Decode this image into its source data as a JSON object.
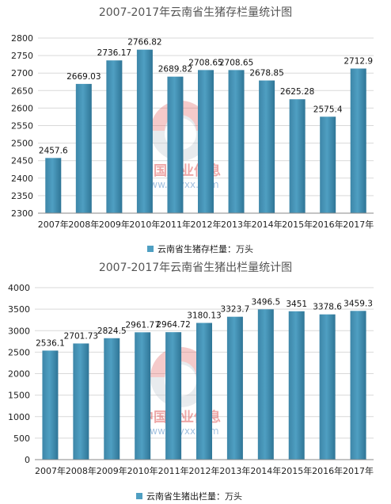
{
  "watermark": {
    "brand": "中国产业信息",
    "url": "www.chyxx.com"
  },
  "chart_data": [
    {
      "type": "bar",
      "title": "2007-2017年云南省生猪存栏量统计图",
      "categories": [
        "2007年",
        "2008年",
        "2009年",
        "2010年",
        "2011年",
        "2012年",
        "2013年",
        "2014年",
        "2015年",
        "2016年",
        "2017年"
      ],
      "series": [
        {
          "name": "云南省生猪存栏量：万头",
          "values": [
            2457.6,
            2669.03,
            2736.17,
            2766.82,
            2689.82,
            2708.65,
            2708.65,
            2678.85,
            2625.28,
            2575.4,
            2712.9
          ],
          "labels": [
            "2457.6",
            "2669.03",
            "2736.17",
            "2766.82",
            "2689.82",
            "2708.65",
            "2708.65",
            "2678.85",
            "2625.28",
            "2575.4",
            "2712.9"
          ]
        }
      ],
      "ylim": [
        2300,
        2800
      ],
      "yticks": [
        2300,
        2350,
        2400,
        2450,
        2500,
        2550,
        2600,
        2650,
        2700,
        2750,
        2800
      ],
      "grid": true,
      "legend": "bottom",
      "bar_color": "#4f9fc2"
    },
    {
      "type": "bar",
      "title": "2007-2017年云南省生猪出栏量统计图",
      "categories": [
        "2007年",
        "2008年",
        "2009年",
        "2010年",
        "2011年",
        "2012年",
        "2013年",
        "2014年",
        "2015年",
        "2016年",
        "2017年"
      ],
      "series": [
        {
          "name": "云南省生猪出栏量：万头",
          "values": [
            2536.1,
            2701.73,
            2824.5,
            2961.77,
            2964.72,
            3180.13,
            3323.7,
            3496.5,
            3451,
            3378.6,
            3459.3
          ],
          "labels": [
            "2536.1",
            "2701.73",
            "2824.5",
            "2961.77",
            "2964.72",
            "3180.13",
            "3323.7",
            "3496.5",
            "3451",
            "3378.6",
            "3459.3"
          ]
        }
      ],
      "ylim": [
        0,
        4000
      ],
      "yticks": [
        0,
        500,
        1000,
        1500,
        2000,
        2500,
        3000,
        3500,
        4000
      ],
      "grid": true,
      "legend": "bottom",
      "bar_color": "#4f9fc2"
    }
  ]
}
